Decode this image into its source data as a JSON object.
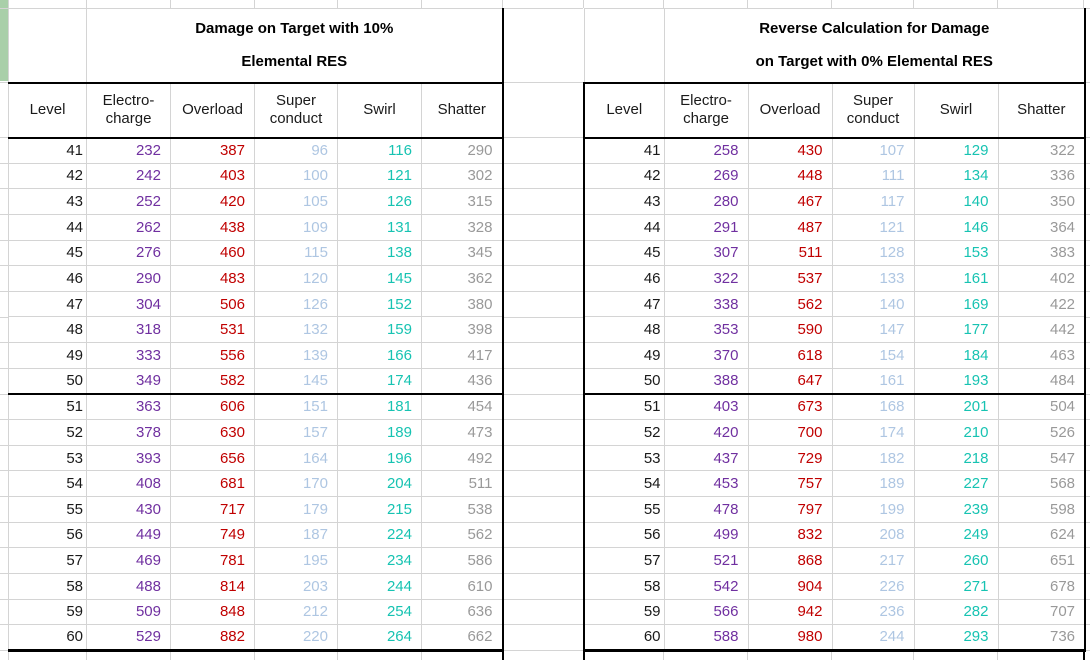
{
  "colors": {
    "level": "#1a1a1a",
    "electro_charge": "#7030A0",
    "overload": "#C00000",
    "super_conduct": "#AEC6E2",
    "swirl": "#17C3B2",
    "shatter": "#999999",
    "gridline": "#d4d4d4",
    "table_border": "#000000",
    "side_strip_green": "#A9CFA9"
  },
  "column_color_keys": [
    "level",
    "electro_charge",
    "overload",
    "super_conduct",
    "swirl",
    "shatter"
  ],
  "tables": [
    {
      "title": "Damage on Target with 10%\nElemental RES",
      "columns": [
        "Level",
        "Electro-\ncharge",
        "Overload",
        "Super\nconduct",
        "Swirl",
        "Shatter"
      ],
      "rows": [
        [
          41,
          232,
          387,
          96,
          116,
          290
        ],
        [
          42,
          242,
          403,
          100,
          121,
          302
        ],
        [
          43,
          252,
          420,
          105,
          126,
          315
        ],
        [
          44,
          262,
          438,
          109,
          131,
          328
        ],
        [
          45,
          276,
          460,
          115,
          138,
          345
        ],
        [
          46,
          290,
          483,
          120,
          145,
          362
        ],
        [
          47,
          304,
          506,
          126,
          152,
          380
        ],
        [
          48,
          318,
          531,
          132,
          159,
          398
        ],
        [
          49,
          333,
          556,
          139,
          166,
          417
        ],
        [
          50,
          349,
          582,
          145,
          174,
          436
        ],
        [
          51,
          363,
          606,
          151,
          181,
          454
        ],
        [
          52,
          378,
          630,
          157,
          189,
          473
        ],
        [
          53,
          393,
          656,
          164,
          196,
          492
        ],
        [
          54,
          408,
          681,
          170,
          204,
          511
        ],
        [
          55,
          430,
          717,
          179,
          215,
          538
        ],
        [
          56,
          449,
          749,
          187,
          224,
          562
        ],
        [
          57,
          469,
          781,
          195,
          234,
          586
        ],
        [
          58,
          488,
          814,
          203,
          244,
          610
        ],
        [
          59,
          509,
          848,
          212,
          254,
          636
        ],
        [
          60,
          529,
          882,
          220,
          264,
          662
        ]
      ]
    },
    {
      "title": "Reverse Calculation for Damage\non Target with 0% Elemental RES",
      "columns": [
        "Level",
        "Electro-\ncharge",
        "Overload",
        "Super\nconduct",
        "Swirl",
        "Shatter"
      ],
      "rows": [
        [
          41,
          258,
          430,
          107,
          129,
          322
        ],
        [
          42,
          269,
          448,
          111,
          134,
          336
        ],
        [
          43,
          280,
          467,
          117,
          140,
          350
        ],
        [
          44,
          291,
          487,
          121,
          146,
          364
        ],
        [
          45,
          307,
          511,
          128,
          153,
          383
        ],
        [
          46,
          322,
          537,
          133,
          161,
          402
        ],
        [
          47,
          338,
          562,
          140,
          169,
          422
        ],
        [
          48,
          353,
          590,
          147,
          177,
          442
        ],
        [
          49,
          370,
          618,
          154,
          184,
          463
        ],
        [
          50,
          388,
          647,
          161,
          193,
          484
        ],
        [
          51,
          403,
          673,
          168,
          201,
          504
        ],
        [
          52,
          420,
          700,
          174,
          210,
          526
        ],
        [
          53,
          437,
          729,
          182,
          218,
          547
        ],
        [
          54,
          453,
          757,
          189,
          227,
          568
        ],
        [
          55,
          478,
          797,
          199,
          239,
          598
        ],
        [
          56,
          499,
          832,
          208,
          249,
          624
        ],
        [
          57,
          521,
          868,
          217,
          260,
          651
        ],
        [
          58,
          542,
          904,
          226,
          271,
          678
        ],
        [
          59,
          566,
          942,
          236,
          282,
          707
        ],
        [
          60,
          588,
          980,
          244,
          293,
          736
        ]
      ]
    }
  ]
}
